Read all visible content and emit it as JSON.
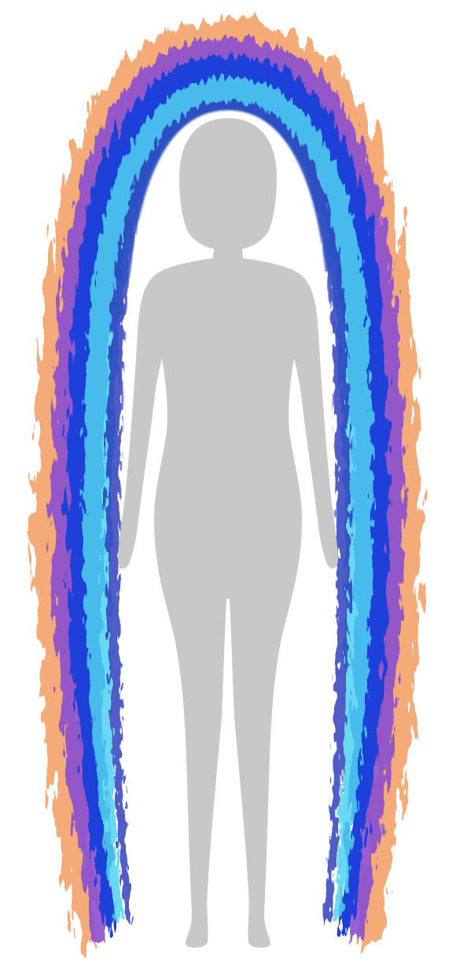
{
  "image": {
    "subject": "human-silhouette-with-aura",
    "colors": {
      "background": "#ffffff",
      "silhouette": "#c8c8c8",
      "halo_gap": "#ffffff",
      "aura_cyan": "#4fd2f0",
      "aura_blue": "#1f3fd8",
      "aura_violet": "#8a4fd0",
      "aura_pink": "#ee6a8e",
      "aura_orange": "#f3a36a"
    }
  }
}
